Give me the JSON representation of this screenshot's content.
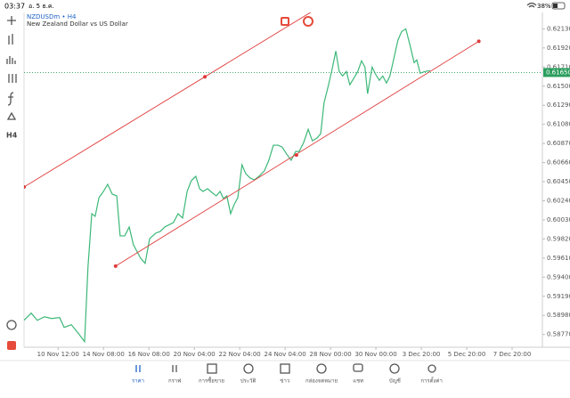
{
  "status_bar": {
    "time": "03:37",
    "date": "อ. 5 ธ.ค.",
    "battery": "38%"
  },
  "toolbar": {
    "timeframe": "H4"
  },
  "chart_data": {
    "type": "line",
    "title": "NZDUSDm • H4",
    "subtitle": "New Zealand Dollar vs US Dollar",
    "x": [
      0,
      1.9,
      3.5,
      5.4,
      7.3,
      9.4,
      10.6,
      12.5,
      14.4,
      16,
      16.9,
      17.9,
      18.8,
      19.8,
      21,
      22.1,
      23.3,
      24.5,
      25.4,
      26.6,
      27.8,
      28.9,
      30.8,
      32,
      33.2,
      34.8,
      36,
      37.2,
      39.5,
      40.7,
      41.9,
      43.1,
      44.2,
      45.4,
      46.4,
      47.3,
      48.5,
      49.6,
      50.8,
      51.8,
      52.7,
      53.6,
      54.6,
      55.5,
      56.5,
      57.6,
      58.6,
      59.8,
      60.9,
      62.1,
      63.5,
      64.7,
      65.9,
      67.1,
      68.2,
      69.4,
      70.6,
      71.8,
      72.7,
      73.9,
      75.1,
      76.2,
      77.4,
      78.4,
      79.3,
      80.2,
      81.4,
      82.4,
      83.3,
      84.2,
      85.2,
      86.1,
      87.1,
      88.2,
      89.2,
      90.1,
      90.8,
      92,
      92.9,
      93.9,
      94.8,
      95.8,
      96.7,
      97.6,
      98.8,
      99.8,
      100.9,
      102.1,
      103.1,
      103.8,
      104.7,
      105.9,
      107.3
    ],
    "series": [
      {
        "color": "#3cb878",
        "values": [
          0.58926,
          0.59005,
          0.58926,
          0.58965,
          0.58946,
          0.58956,
          0.58848,
          0.58878,
          0.5878,
          0.58692,
          0.59512,
          0.60098,
          0.60069,
          0.60274,
          0.60343,
          0.60421,
          0.60313,
          0.60294,
          0.59854,
          0.59854,
          0.59952,
          0.59757,
          0.5961,
          0.59552,
          0.59825,
          0.59884,
          0.59903,
          0.59952,
          0.60001,
          0.60098,
          0.6005,
          0.60343,
          0.6046,
          0.60509,
          0.60372,
          0.60343,
          0.60372,
          0.60333,
          0.60294,
          0.60343,
          0.60265,
          0.60294,
          0.60098,
          0.60196,
          0.60274,
          0.60636,
          0.60538,
          0.60489,
          0.6047,
          0.60509,
          0.60567,
          0.60685,
          0.60851,
          0.60851,
          0.60831,
          0.60753,
          0.60685,
          0.60782,
          0.60782,
          0.6088,
          0.61026,
          0.60899,
          0.60929,
          0.60978,
          0.61319,
          0.61466,
          0.61681,
          0.61886,
          0.61661,
          0.61612,
          0.61661,
          0.61515,
          0.61583,
          0.61661,
          0.61778,
          0.6171,
          0.61417,
          0.6171,
          0.61632,
          0.61564,
          0.61612,
          0.61534,
          0.61612,
          0.61778,
          0.62003,
          0.62101,
          0.6213,
          0.61935,
          0.61759,
          0.61788,
          0.61642,
          0.61661,
          0.61671
        ]
      }
    ],
    "xlim": [
      0,
      137
    ],
    "xticks": [
      {
        "value": 9,
        "label": "10 Nov 12:00"
      },
      {
        "value": 21,
        "label": "14 Nov 08:00"
      },
      {
        "value": 33,
        "label": "16 Nov 08:00"
      },
      {
        "value": 45,
        "label": "20 Nov 04:00"
      },
      {
        "value": 57,
        "label": "22 Nov 04:00"
      },
      {
        "value": 69,
        "label": "24 Nov 04:00"
      },
      {
        "value": 81,
        "label": "28 Nov 00:00"
      },
      {
        "value": 93,
        "label": "30 Nov 00:00"
      },
      {
        "value": 105,
        "label": "3 Dec 20:00"
      },
      {
        "value": 117,
        "label": "5 Dec 20:00"
      },
      {
        "value": 129,
        "label": "7 Dec 20:00"
      }
    ],
    "ylim": [
      0.5863,
      0.6231
    ],
    "yticks": [
      {
        "value": 0.6213,
        "label": "0.62130"
      },
      {
        "value": 0.6192,
        "label": "0.61920"
      },
      {
        "value": 0.6171,
        "label": "0.61710"
      },
      {
        "value": 0.615,
        "label": "0.61500"
      },
      {
        "value": 0.6129,
        "label": "0.61290"
      },
      {
        "value": 0.6108,
        "label": "0.61080"
      },
      {
        "value": 0.6087,
        "label": "0.60870"
      },
      {
        "value": 0.6066,
        "label": "0.60660"
      },
      {
        "value": 0.6045,
        "label": "0.60450"
      },
      {
        "value": 0.6024,
        "label": "0.60240"
      },
      {
        "value": 0.6003,
        "label": "0.60030"
      },
      {
        "value": 0.5982,
        "label": "0.59820"
      },
      {
        "value": 0.5961,
        "label": "0.59610"
      },
      {
        "value": 0.594,
        "label": "0.59400"
      },
      {
        "value": 0.5919,
        "label": "0.59190"
      },
      {
        "value": 0.5898,
        "label": "0.58980"
      },
      {
        "value": 0.5877,
        "label": "0.58770"
      }
    ],
    "current_price": {
      "value": 0.6165,
      "label": "0.61650",
      "color": "#2a9d5c"
    },
    "trendlines": [
      {
        "color": "#e03a3a",
        "x": [
          0,
          47.8
        ],
        "values": [
          0.60392,
          0.61603
        ],
        "extend": true
      },
      {
        "color": "#e03a3a",
        "x": [
          24.2,
          72,
          120.2
        ],
        "values": [
          0.59522,
          0.60743,
          0.61993
        ],
        "extend": false
      }
    ]
  },
  "nav": {
    "items": [
      "ราคา",
      "กราฟ",
      "การซื้อขาย",
      "ประวัติ",
      "ข่าว",
      "กล่องจดหมาย",
      "แชท",
      "บัญชี",
      "การตั้งค่า"
    ],
    "active": 0
  }
}
